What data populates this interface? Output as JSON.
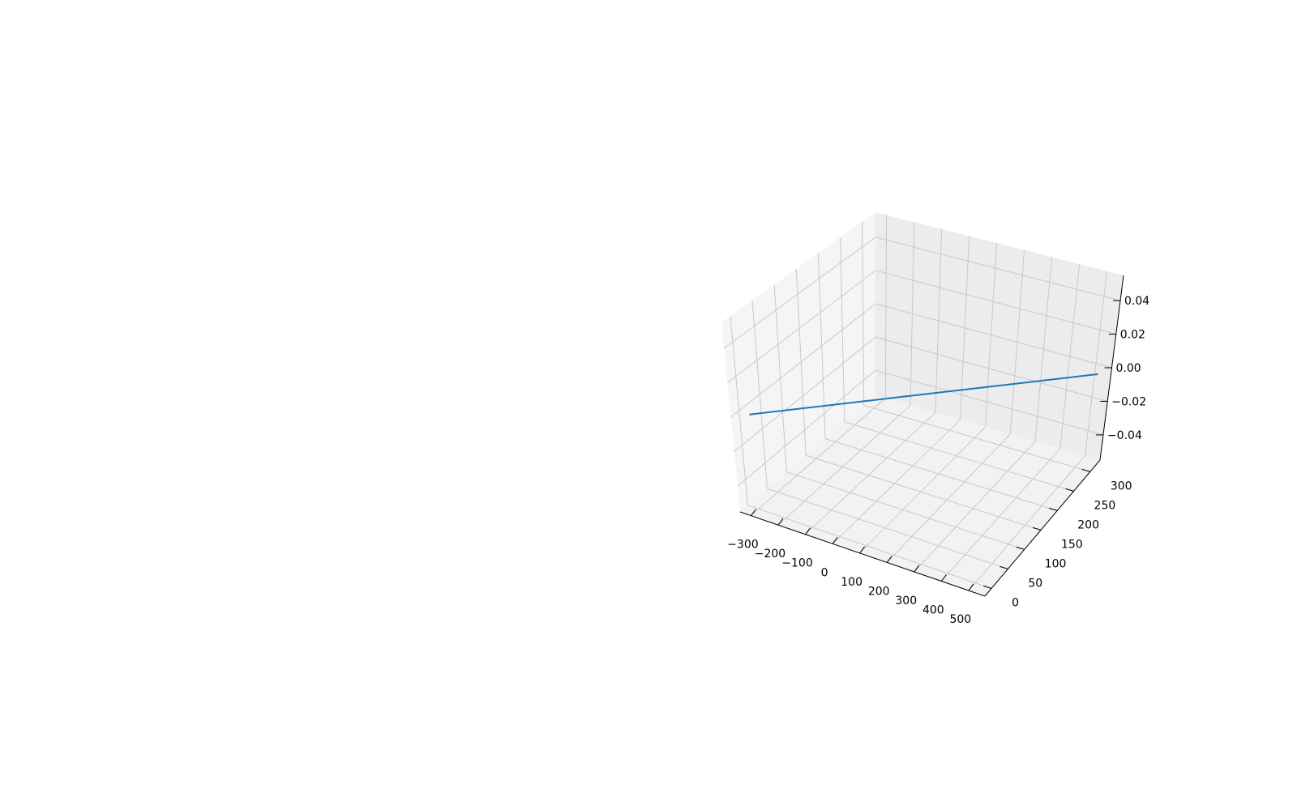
{
  "chart_data": {
    "type": "line",
    "projection": "3d",
    "title": "",
    "xlabel": "",
    "ylabel": "",
    "zlabel": "",
    "x_ticks": [
      -300,
      -200,
      -100,
      0,
      100,
      200,
      300,
      400,
      500
    ],
    "x_tick_labels": [
      "−300",
      "−200",
      "−100",
      "0",
      "100",
      "200",
      "300",
      "400",
      "500"
    ],
    "y_ticks": [
      0,
      50,
      100,
      150,
      200,
      250,
      300
    ],
    "y_tick_labels": [
      "0",
      "50",
      "100",
      "150",
      "200",
      "250",
      "300"
    ],
    "z_ticks": [
      -0.04,
      -0.02,
      0.0,
      0.02,
      0.04
    ],
    "z_tick_labels": [
      "−0.04",
      "−0.02",
      "0.00",
      "0.02",
      "0.04"
    ],
    "xlim": [
      -340,
      560
    ],
    "ylim": [
      -20,
      330
    ],
    "zlim": [
      -0.055,
      0.055
    ],
    "grid": true,
    "series": [
      {
        "color": "#1f77b4",
        "points": [
          {
            "x": -303,
            "y": 0,
            "z": 0
          },
          {
            "x": 536,
            "y": 310,
            "z": 0
          }
        ]
      }
    ],
    "colors": {
      "pane_left": "#f5f5f5",
      "pane_right": "#ececec",
      "pane_floor": "#f2f2f2",
      "grid": "#c8c8c8",
      "axis_line": "#000000"
    }
  }
}
